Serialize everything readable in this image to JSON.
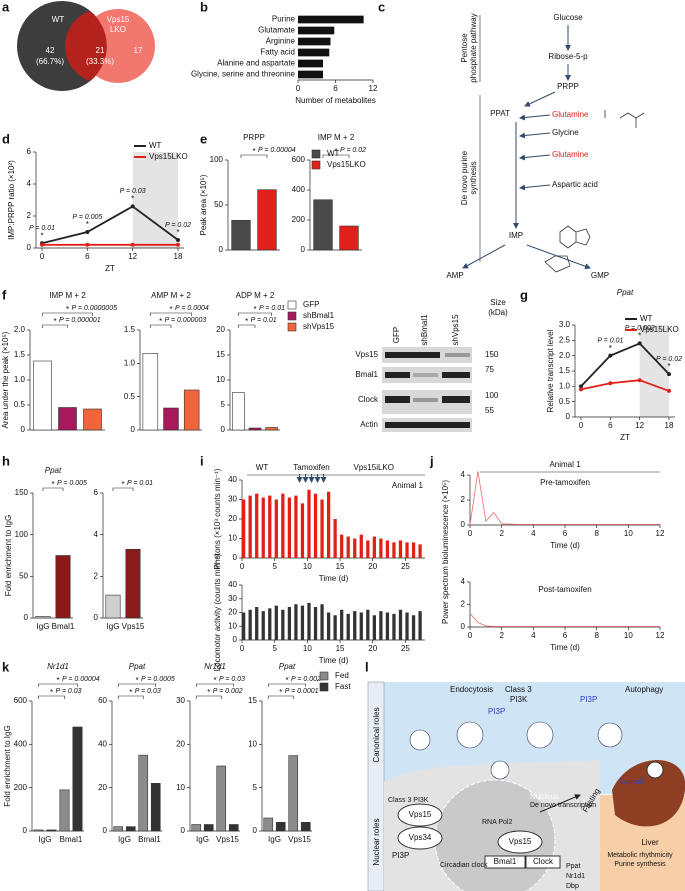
{
  "panel_labels": [
    "a",
    "b",
    "c",
    "d",
    "e",
    "f",
    "g",
    "h",
    "i",
    "j",
    "k",
    "l"
  ],
  "venn": {
    "left": "WT",
    "right": [
      "Vps15",
      "LKO"
    ],
    "left_only": 42,
    "left_only_pct": "(66.7%)",
    "both": 21,
    "both_pct": "(33.3%)",
    "right_only": 17
  },
  "pathway": {
    "glucose": "Glucose",
    "ribose": "Ribose-5-p",
    "ppp": [
      "Pentose",
      "phosphate pathway"
    ],
    "prpp": "PRPP",
    "ppat": "PPAT",
    "inputs": [
      "Glutamine",
      "Glycine",
      "Glutamine",
      "Aspartic acid"
    ],
    "dnps": [
      "De novo purine",
      "synthesis"
    ],
    "imp": "IMP",
    "amp": "AMP",
    "gmp": "GMP"
  },
  "blot": {
    "lanes": [
      "GFP",
      "shBmal1",
      "shVps15"
    ],
    "size": [
      "Size",
      "(kDa)"
    ],
    "rows": [
      "Vps15",
      "Bmal1",
      "Clock",
      "Actin"
    ],
    "markers": [
      "150",
      "75",
      "100",
      "55"
    ]
  },
  "schematic": {
    "side": [
      "Canonical roles",
      "Nuclear roles"
    ],
    "top": [
      "Endocytosis",
      "Autophagy",
      "Class 3",
      "PI3K",
      "PI3P",
      "PI3P",
      "Cytosol"
    ],
    "nucleus": [
      "Class 3 PI3K",
      "Vps15",
      "Vps34",
      "PI3P",
      "Nucleus",
      "RNA Pol2",
      "De novo transcription",
      "Fasting",
      "Vps15",
      "Bmal1",
      "Clock",
      "Circadian clock",
      "Ppat",
      "Nr1d1",
      "Dbp"
    ],
    "liver": [
      "Liver",
      "Metabolic rhythmicity",
      "Purine synthesis"
    ]
  },
  "chart_data": [
    {
      "type": "hbar",
      "categories": [
        "Purine",
        "Glutamate",
        "Arginine",
        "Fatty acid",
        "Alanine and aspartate",
        "Glycine, serine and threonine"
      ],
      "values": [
        10.5,
        5.8,
        5.2,
        5,
        4,
        4
      ],
      "color": "#111111",
      "xlim": [
        0,
        12
      ],
      "xticks": [
        0,
        6,
        12
      ],
      "xlabel": "Number of metabolites"
    },
    {
      "type": "line",
      "x": [
        0,
        6,
        12,
        18
      ],
      "xlim": [
        0,
        18
      ],
      "xticks": [
        0,
        6,
        12,
        18
      ],
      "xlabel": "ZT",
      "ylim": [
        0,
        6
      ],
      "yticks": [
        0,
        2,
        4,
        6
      ],
      "ylabel": "IMP:PRPP ratio (×10²)",
      "shaded_x": [
        12,
        18
      ],
      "legend": "upper right",
      "series": [
        {
          "name": "WT",
          "color": "#222222",
          "values": [
            0.3,
            1.0,
            2.6,
            0.5
          ]
        },
        {
          "name": "Vps15LKO",
          "color": "#e0211b",
          "values": [
            0.2,
            0.2,
            0.2,
            0.2
          ]
        }
      ],
      "point_labels": [
        "P = 0.01",
        "P = 0.005",
        "P = 0.03",
        "P = 0.02"
      ],
      "point_marks": [
        "*",
        "*",
        "*",
        "*"
      ]
    },
    {
      "type": "bar",
      "title": "PRPP",
      "ylabel": "Peak area (×10⁵)",
      "ylim": [
        0,
        100
      ],
      "yticks": [
        0,
        50,
        100
      ],
      "series": [
        {
          "color": "#4a4a4a",
          "values": [
            33
          ]
        },
        {
          "color": "#e0211b",
          "values": [
            67
          ]
        }
      ],
      "annotations": [
        {
          "mark": "*",
          "text": "P = 0.00004"
        }
      ]
    },
    {
      "type": "bar",
      "title": "IMP M + 2",
      "ylim": [
        0,
        600
      ],
      "yticks": [
        0,
        200,
        400,
        600
      ],
      "legend": "upper right",
      "series": [
        {
          "name": "WT",
          "color": "#4a4a4a",
          "values": [
            335
          ]
        },
        {
          "name": "Vps15LKO",
          "color": "#e0211b",
          "values": [
            160
          ]
        }
      ],
      "annotations": [
        {
          "mark": "*",
          "text": "P = 0.02"
        }
      ]
    },
    {
      "type": "bar",
      "title": "IMP M + 2",
      "ylabel": "Area under the peak (×10⁵)",
      "ylim": [
        0,
        2
      ],
      "yticks": [
        0,
        0.5,
        {
          "value": 1,
          "label": "1.0"
        },
        1.5,
        {
          "value": 2,
          "label": "2.0"
        }
      ],
      "series": [
        {
          "color": "#ffffff",
          "values": [
            1.38
          ]
        },
        {
          "color": "#a8195b",
          "values": [
            0.45
          ]
        },
        {
          "color": "#f0653a",
          "values": [
            0.42
          ]
        }
      ],
      "annotations": [
        {
          "mark": "*",
          "text": "P = 0.000001"
        },
        {
          "mark": "*",
          "text": "P = 0.0000005"
        }
      ]
    },
    {
      "type": "bar",
      "title": "AMP M + 2",
      "ylim": [
        0,
        1.5
      ],
      "yticks": [
        0,
        0.5,
        {
          "value": 1,
          "label": "1.0"
        },
        1.5
      ],
      "series": [
        {
          "color": "#ffffff",
          "values": [
            1.15
          ]
        },
        {
          "color": "#a8195b",
          "values": [
            0.33
          ]
        },
        {
          "color": "#f0653a",
          "values": [
            0.6
          ]
        }
      ],
      "annotations": [
        {
          "mark": "*",
          "text": "P = 0.000003"
        },
        {
          "mark": "*",
          "text": "P = 0.0004"
        }
      ]
    },
    {
      "type": "bar",
      "title": "ADP M + 2",
      "ylim": [
        0,
        20
      ],
      "yticks": [
        0,
        5,
        10,
        15,
        20
      ],
      "legend": "right",
      "series": [
        {
          "name": "GFP",
          "color": "#ffffff",
          "values": [
            7.5
          ]
        },
        {
          "name": "shBmal1",
          "color": "#a8195b",
          "values": [
            0.4
          ]
        },
        {
          "name": "shVps15",
          "color": "#f0653a",
          "values": [
            0.5
          ]
        }
      ],
      "annotations": [
        {
          "mark": "*",
          "text": "P = 0.01"
        },
        {
          "mark": "*",
          "text": "P = 0.01"
        }
      ]
    },
    {
      "type": "line",
      "title": "Ppat",
      "title_italic": true,
      "x": [
        0,
        6,
        12,
        18
      ],
      "xlim": [
        0,
        18
      ],
      "xticks": [
        0,
        6,
        12,
        18
      ],
      "xlabel": "ZT",
      "ylim": [
        0,
        3
      ],
      "yticks": [
        0,
        0.5,
        {
          "value": 1,
          "label": "1.0"
        },
        1.5,
        {
          "value": 2,
          "label": "2.0"
        },
        2.5,
        {
          "value": 3,
          "label": "3.0"
        }
      ],
      "ylabel": "Relative transcript level",
      "shaded_x": [
        12,
        18
      ],
      "legend": "upper right",
      "series": [
        {
          "name": "WT",
          "color": "#222222",
          "values": [
            1.0,
            2.0,
            2.4,
            1.4
          ]
        },
        {
          "name": "Vps15LKO",
          "color": "#e0211b",
          "values": [
            0.9,
            1.1,
            1.2,
            0.85
          ]
        }
      ],
      "point_labels": [
        null,
        "P = 0.01",
        "P = 0.002",
        "P = 0.02"
      ],
      "point_marks": [
        null,
        "*",
        "*",
        "*"
      ]
    },
    {
      "type": "bar",
      "title": "Ppat",
      "title_italic": true,
      "ylabel": "Fold enrichment to IgG",
      "categories": [
        "IgG",
        "Bmal1"
      ],
      "values": [
        2,
        75
      ],
      "colors": [
        "#cfcfcf",
        "#8b1a1a"
      ],
      "ylim": [
        0,
        150
      ],
      "yticks": [
        0,
        50,
        100,
        150
      ],
      "annotations": [
        {
          "mark": "*",
          "text": "P = 0.005"
        }
      ]
    },
    {
      "type": "bar",
      "categories": [
        "IgG",
        "Vps15"
      ],
      "values": [
        1.1,
        3.3
      ],
      "colors": [
        "#cfcfcf",
        "#8b1a1a"
      ],
      "ylim": [
        0,
        6
      ],
      "yticks": [
        0,
        2,
        4,
        6
      ],
      "annotations": [
        {
          "mark": "*",
          "text": "P = 0.01"
        }
      ]
    },
    {
      "type": "activity",
      "label": "Animal 1",
      "top_labels": [
        "WT",
        "Tamoxifen",
        "Vps15iLKO"
      ],
      "color": "#e0211b",
      "ylabel": "Photons (×10³ counts min⁻¹)",
      "xlabel": "Time (d)",
      "xlim": [
        0,
        28
      ],
      "xticks": [
        0,
        5,
        10,
        15,
        20,
        25
      ],
      "ylim": [
        0,
        40
      ],
      "yticks": [
        0,
        10,
        20,
        30,
        40
      ],
      "x": [
        0,
        1,
        2,
        3,
        4,
        5,
        6,
        7,
        8,
        9,
        10,
        11,
        12,
        13,
        14,
        15,
        16,
        17,
        18,
        19,
        20,
        21,
        22,
        23,
        24,
        25,
        26,
        27
      ],
      "values": [
        30,
        32,
        33,
        31,
        32,
        30,
        33,
        31,
        32,
        28,
        35,
        33,
        30,
        34,
        20,
        12,
        11,
        10,
        12,
        9,
        11,
        10,
        9,
        8,
        9,
        8,
        8,
        7
      ]
    },
    {
      "type": "activity",
      "color": "#333333",
      "ylabel": "Locomotor activity (counts min⁻¹)",
      "xlabel": "Time (d)",
      "xlim": [
        0,
        28
      ],
      "xticks": [
        0,
        5,
        10,
        15,
        20,
        25
      ],
      "ylim": [
        0,
        40
      ],
      "yticks": [
        0,
        10,
        20,
        30,
        40
      ],
      "x": [
        0,
        1,
        2,
        3,
        4,
        5,
        6,
        7,
        8,
        9,
        10,
        11,
        12,
        13,
        14,
        15,
        16,
        17,
        18,
        19,
        20,
        21,
        22,
        23,
        24,
        25,
        26,
        27
      ],
      "values": [
        20,
        22,
        24,
        21,
        23,
        25,
        22,
        24,
        26,
        25,
        27,
        24,
        26,
        20,
        18,
        22,
        19,
        21,
        20,
        22,
        18,
        21,
        20,
        19,
        22,
        20,
        18,
        21
      ]
    },
    {
      "type": "line",
      "title": "Animal 1",
      "label": "Pre-tamoxifen",
      "ylabel": "Power spectrum bioluminescence (×10⁵)",
      "xlabel": "Time (d)",
      "xlim": [
        0,
        12
      ],
      "xticks": [
        0,
        2,
        4,
        6,
        8,
        10,
        12
      ],
      "ylim": [
        0,
        4
      ],
      "yticks": [
        0,
        2,
        4
      ],
      "thin": true,
      "x": [
        0,
        0.5,
        1,
        1.5,
        2,
        3,
        4,
        6,
        8,
        10,
        12
      ],
      "series": [
        {
          "color": "#e86a6a",
          "values": [
            0,
            4.3,
            0.3,
            1.0,
            0.1,
            0.05,
            0.05,
            0.05,
            0.05,
            0.05,
            0.05
          ]
        }
      ]
    },
    {
      "type": "line",
      "label": "Post-tamoxifen",
      "xlabel": "Time (d)",
      "xlim": [
        0,
        12
      ],
      "xticks": [
        0,
        2,
        4,
        6,
        8,
        10,
        12
      ],
      "ylim": [
        0,
        4
      ],
      "yticks": [
        0,
        2,
        4
      ],
      "thin": true,
      "x": [
        0,
        0.5,
        1,
        1.5,
        2,
        3,
        4,
        6,
        8,
        10,
        12
      ],
      "series": [
        {
          "color": "#e86a6a",
          "values": [
            1.2,
            0.4,
            0.1,
            0.05,
            0.05,
            0.05,
            0.05,
            0.05,
            0.05,
            0.05,
            0.05
          ]
        }
      ]
    },
    {
      "type": "bar",
      "title": "Nr1d1",
      "title_italic": true,
      "ylabel": "Fold enrichment to IgG",
      "categories": [
        "IgG",
        "Bmal1"
      ],
      "ylim": [
        0,
        600
      ],
      "yticks": [
        0,
        200,
        400,
        600
      ],
      "series": [
        {
          "color": "#8c8c8c",
          "values": [
            5,
            190
          ]
        },
        {
          "color": "#333333",
          "values": [
            5,
            480
          ]
        }
      ],
      "annotations": [
        {
          "mark": "*",
          "text": "P = 0.03"
        },
        {
          "mark": "*",
          "text": "P = 0.00004"
        }
      ]
    },
    {
      "type": "bar",
      "title": "Ppat",
      "title_italic": true,
      "categories": [
        "IgG",
        "Bmal1"
      ],
      "ylim": [
        0,
        60
      ],
      "yticks": [
        0,
        20,
        40,
        60
      ],
      "series": [
        {
          "color": "#8c8c8c",
          "values": [
            2,
            35
          ]
        },
        {
          "color": "#333333",
          "values": [
            2,
            22
          ]
        }
      ],
      "annotations": [
        {
          "mark": "*",
          "text": "P = 0.03"
        },
        {
          "mark": "*",
          "text": "P = 0.0005"
        }
      ]
    },
    {
      "type": "bar",
      "title": "Nr1d1",
      "title_italic": true,
      "categories": [
        "IgG",
        "Vps15"
      ],
      "ylim": [
        0,
        30
      ],
      "yticks": [
        0,
        10,
        20,
        30
      ],
      "series": [
        {
          "color": "#8c8c8c",
          "values": [
            1.5,
            15
          ]
        },
        {
          "color": "#333333",
          "values": [
            1.5,
            1.5
          ]
        }
      ],
      "annotations": [
        {
          "mark": "*",
          "text": "P = 0.002"
        },
        {
          "mark": "*",
          "text": "P = 0.03"
        }
      ]
    },
    {
      "type": "bar",
      "title": "Ppat",
      "title_italic": true,
      "categories": [
        "IgG",
        "Vps15"
      ],
      "ylim": [
        0,
        15
      ],
      "yticks": [
        0,
        5,
        10,
        15
      ],
      "legend": "right",
      "series": [
        {
          "name": "Fed",
          "color": "#8c8c8c",
          "values": [
            1.5,
            8.7
          ]
        },
        {
          "name": "Fast",
          "color": "#333333",
          "values": [
            1,
            1
          ]
        }
      ],
      "annotations": [
        {
          "mark": "*",
          "text": "P = 0.0001"
        },
        {
          "mark": "*",
          "text": "P = 0.002"
        }
      ]
    }
  ]
}
